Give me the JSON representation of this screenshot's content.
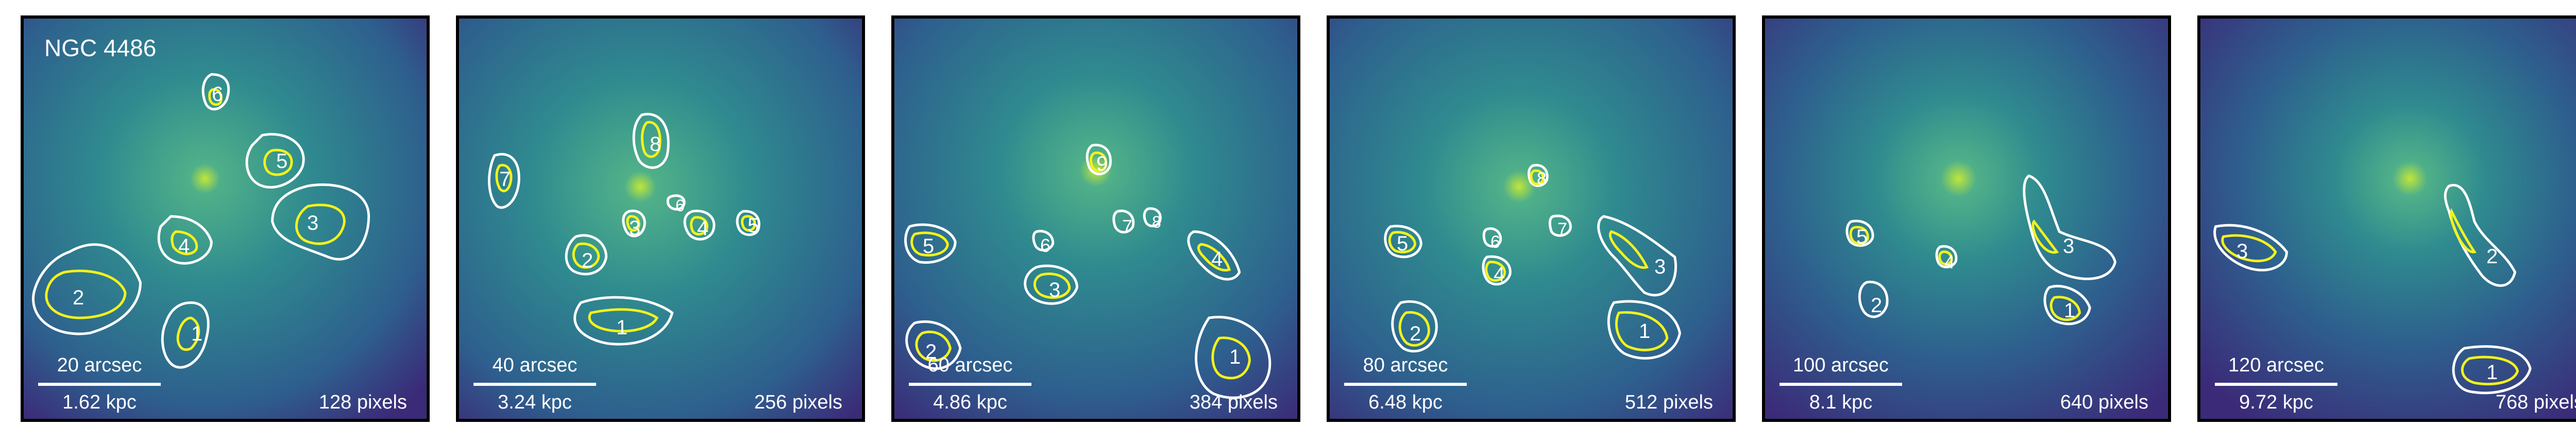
{
  "galaxy_name": "NGC 4486",
  "colors": {
    "background_deep": "#3b2a78",
    "background_mid": "#2e6f8e",
    "core": "#bfe63a",
    "contour_white": "#ffffff",
    "contour_yellow": "#f2f21c"
  },
  "panels": [
    {
      "arcsec": "20 arcsec",
      "kpc": "1.62 kpc",
      "pixels": "128 pixels",
      "labels": [
        "1",
        "2",
        "3",
        "4",
        "5",
        "6"
      ]
    },
    {
      "arcsec": "40 arcsec",
      "kpc": "3.24 kpc",
      "pixels": "256 pixels",
      "labels": [
        "1",
        "2",
        "3",
        "4",
        "5",
        "6",
        "7",
        "8"
      ]
    },
    {
      "arcsec": "60 arcsec",
      "kpc": "4.86 kpc",
      "pixels": "384 pixels",
      "labels": [
        "1",
        "2",
        "3",
        "4",
        "5",
        "6",
        "7",
        "8",
        "9"
      ]
    },
    {
      "arcsec": "80 arcsec",
      "kpc": "6.48 kpc",
      "pixels": "512 pixels",
      "labels": [
        "1",
        "2",
        "3",
        "4",
        "5",
        "6",
        "7",
        "8"
      ]
    },
    {
      "arcsec": "100 arcsec",
      "kpc": "8.1 kpc",
      "pixels": "640 pixels",
      "labels": [
        "1",
        "2",
        "3",
        "4",
        "5"
      ]
    },
    {
      "arcsec": "120 arcsec",
      "kpc": "9.72 kpc",
      "pixels": "768 pixels",
      "labels": [
        "1",
        "2",
        "3"
      ]
    }
  ]
}
